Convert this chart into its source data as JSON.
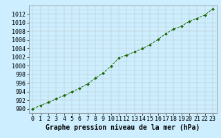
{
  "x": [
    0,
    1,
    2,
    3,
    4,
    5,
    6,
    7,
    8,
    9,
    10,
    11,
    12,
    13,
    14,
    15,
    16,
    17,
    18,
    19,
    20,
    21,
    22,
    23
  ],
  "y": [
    990.0,
    990.8,
    991.5,
    992.3,
    993.1,
    993.9,
    994.8,
    995.8,
    997.1,
    998.3,
    999.9,
    1001.8,
    1002.5,
    1003.2,
    1004.0,
    1004.9,
    1006.1,
    1007.5,
    1008.5,
    1009.2,
    1010.3,
    1011.0,
    1011.8,
    1013.2
  ],
  "line_color": "#1a6600",
  "marker_color": "#1a6600",
  "bg_color": "#cceeff",
  "grid_color": "#bbbbbb",
  "ylabel_ticks": [
    990,
    992,
    994,
    996,
    998,
    1000,
    1002,
    1004,
    1006,
    1008,
    1010,
    1012
  ],
  "xlabel": "Graphe pression niveau de la mer (hPa)",
  "xlim": [
    -0.5,
    23.5
  ],
  "ylim": [
    989.0,
    1014.0
  ],
  "tick_fontsize": 6,
  "label_fontsize": 7
}
